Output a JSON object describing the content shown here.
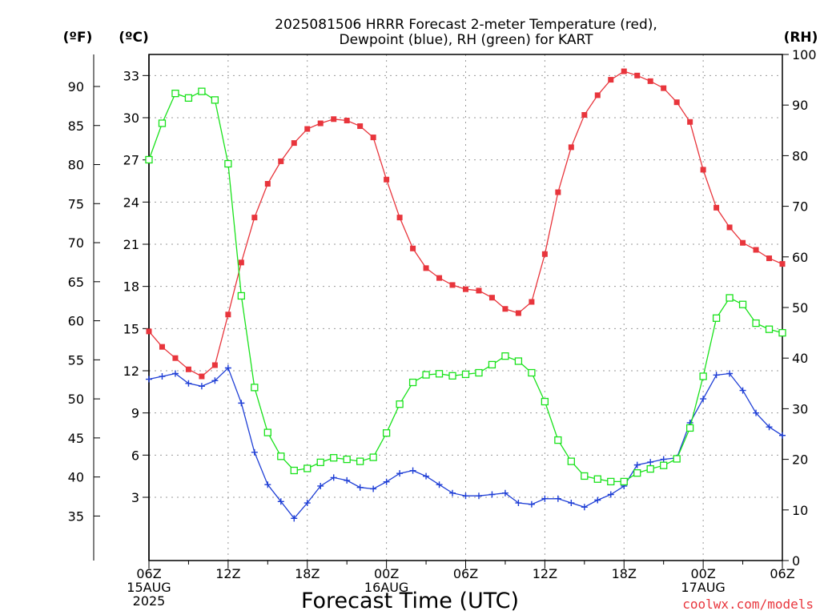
{
  "chart_data": {
    "type": "line",
    "title": "2025081506 HRRR Forecast 2-meter Temperature (red),",
    "subtitle": "Dewpoint (blue), RH (green) for KART",
    "xlabel": "Forecast Time (UTC)",
    "watermark": "coolwx.com/models",
    "unit_labels": {
      "fahrenheit": "(ºF)",
      "celsius": "(ºC)",
      "rh": "(RH)"
    },
    "x_hours": [
      0,
      1,
      2,
      3,
      4,
      5,
      6,
      7,
      8,
      9,
      10,
      11,
      12,
      13,
      14,
      15,
      16,
      17,
      18,
      19,
      20,
      21,
      22,
      23,
      24,
      25,
      26,
      27,
      28,
      29,
      30,
      31,
      32,
      33,
      34,
      35,
      36,
      37,
      38,
      39,
      40,
      41,
      42,
      43,
      44,
      45,
      46,
      47,
      48
    ],
    "x_ticks": [
      {
        "hour": 0,
        "lines": [
          "06Z",
          "15AUG",
          "2025"
        ]
      },
      {
        "hour": 6,
        "lines": [
          "12Z"
        ]
      },
      {
        "hour": 12,
        "lines": [
          "18Z"
        ]
      },
      {
        "hour": 18,
        "lines": [
          "00Z",
          "16AUG"
        ]
      },
      {
        "hour": 24,
        "lines": [
          "06Z"
        ]
      },
      {
        "hour": 30,
        "lines": [
          "12Z"
        ]
      },
      {
        "hour": 36,
        "lines": [
          "18Z"
        ]
      },
      {
        "hour": 42,
        "lines": [
          "00Z",
          "17AUG"
        ]
      },
      {
        "hour": 48,
        "lines": [
          "06Z"
        ]
      }
    ],
    "celsius_range": [
      -1.5,
      34.5
    ],
    "celsius_ticks": [
      "3",
      "6",
      "9",
      "12",
      "15",
      "18",
      "21",
      "24",
      "27",
      "30",
      "33"
    ],
    "fahrenheit_ticks": [
      "35",
      "40",
      "45",
      "50",
      "55",
      "60",
      "65",
      "70",
      "75",
      "80",
      "85",
      "90"
    ],
    "rh_range": [
      0,
      100
    ],
    "rh_ticks": [
      "0",
      "10",
      "20",
      "30",
      "40",
      "50",
      "60",
      "70",
      "80",
      "90",
      "100"
    ],
    "grid": true,
    "series": [
      {
        "name": "Temperature (red)",
        "axis": "celsius",
        "color": "#e8353c",
        "marker": "filled-square",
        "values": [
          14.8,
          13.7,
          12.9,
          12.1,
          11.6,
          12.4,
          16.0,
          19.7,
          22.9,
          25.3,
          26.9,
          28.2,
          29.2,
          29.6,
          29.9,
          29.8,
          29.4,
          28.6,
          25.6,
          22.9,
          20.7,
          19.3,
          18.6,
          18.1,
          17.8,
          17.7,
          17.2,
          16.4,
          16.1,
          16.9,
          20.3,
          24.7,
          27.9,
          30.2,
          31.6,
          32.7,
          33.3,
          33.0,
          32.6,
          32.1,
          31.1,
          29.7,
          26.3,
          23.6,
          22.2,
          21.1,
          20.6,
          20.0,
          19.6
        ]
      },
      {
        "name": "Dewpoint (blue)",
        "axis": "celsius",
        "color": "#1f3fd6",
        "marker": "plus",
        "values": [
          11.4,
          11.6,
          11.8,
          11.1,
          10.9,
          11.3,
          12.2,
          9.7,
          6.2,
          3.9,
          2.7,
          1.5,
          2.6,
          3.8,
          4.4,
          4.2,
          3.7,
          3.6,
          4.1,
          4.7,
          4.9,
          4.5,
          3.9,
          3.3,
          3.1,
          3.1,
          3.2,
          3.3,
          2.6,
          2.5,
          2.9,
          2.9,
          2.6,
          2.3,
          2.8,
          3.2,
          3.8,
          5.3,
          5.5,
          5.7,
          5.8,
          8.3,
          10.0,
          11.7,
          11.8,
          10.6,
          9.0,
          8.0,
          7.4
        ]
      },
      {
        "name": "RH (green)",
        "axis": "rh",
        "color": "#19e21b",
        "marker": "open-square",
        "values": [
          79.2,
          86.4,
          92.3,
          91.4,
          92.7,
          91.0,
          78.4,
          52.3,
          34.2,
          25.3,
          20.6,
          17.8,
          18.2,
          19.4,
          20.3,
          20.0,
          19.6,
          20.4,
          25.2,
          30.9,
          35.2,
          36.7,
          36.9,
          36.5,
          36.8,
          37.1,
          38.7,
          40.4,
          39.4,
          37.1,
          31.4,
          23.8,
          19.6,
          16.7,
          16.1,
          15.6,
          15.6,
          17.3,
          18.1,
          18.8,
          20.1,
          26.2,
          36.4,
          47.9,
          51.9,
          50.6,
          46.9,
          45.7,
          45.0
        ]
      }
    ]
  }
}
